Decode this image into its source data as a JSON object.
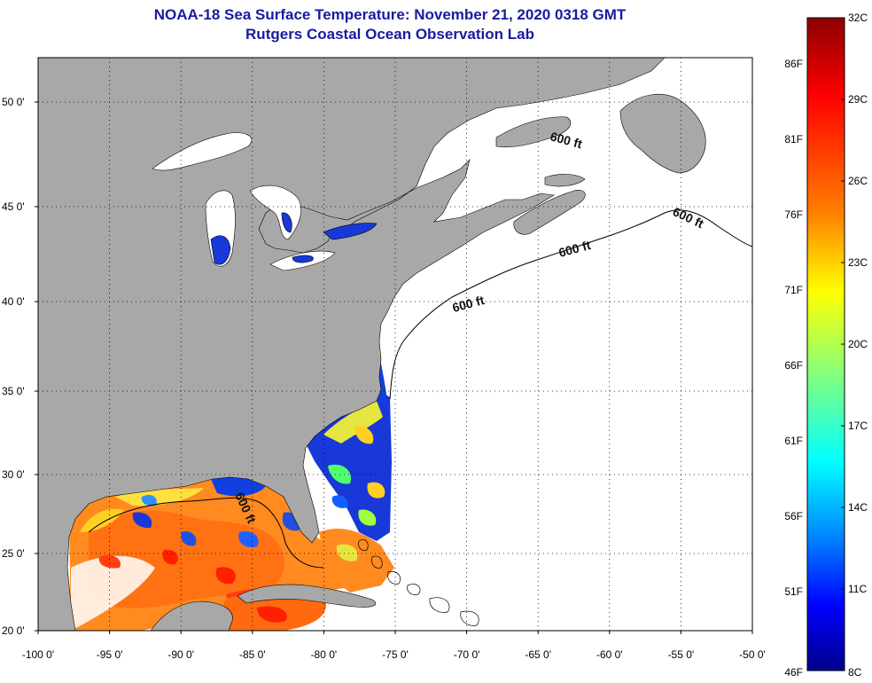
{
  "title": "NOAA-18 Sea Surface Temperature:  November 21, 2020 0318 GMT",
  "subtitle": "Rutgers Coastal Ocean Observation Lab",
  "map": {
    "lon_ticks": [
      "-100 0'",
      "-95 0'",
      "-90 0'",
      "-85 0'",
      "-80 0'",
      "-75 0'",
      "-70 0'",
      "-65 0'",
      "-60 0'",
      "-55 0'",
      "-50 0'"
    ],
    "lat_ticks": [
      "50 0'",
      "45 0'",
      "40 0'",
      "35 0'",
      "30 0'",
      "25 0'",
      "20 0'"
    ],
    "lon_range": [
      -100,
      -50
    ],
    "lat_range": [
      20,
      52.5
    ],
    "contour_label": "600 ft",
    "colors": {
      "land": "#a8a8a8",
      "ocean_no_data": "#ffffff",
      "lakes": "#ffffff"
    }
  },
  "colorbar": {
    "celsius": [
      "32C",
      "29C",
      "26C",
      "23C",
      "20C",
      "17C",
      "14C",
      "11C",
      "8C"
    ],
    "fahrenheit": [
      "86F",
      "81F",
      "76F",
      "71F",
      "66F",
      "61F",
      "56F",
      "51F",
      "46F"
    ],
    "range_c": [
      8,
      32
    ],
    "gradient": [
      "#00008c",
      "#0000ff",
      "#0080ff",
      "#00ffff",
      "#80ff80",
      "#ffff00",
      "#ff8000",
      "#ff0000",
      "#8c0000"
    ]
  }
}
